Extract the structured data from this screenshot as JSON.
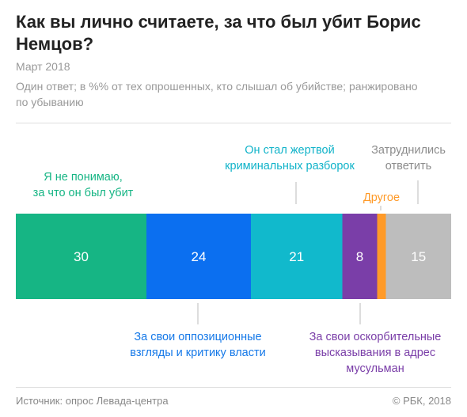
{
  "chart_data": {
    "type": "stacked_bar",
    "title": "Как вы лично считаете, за что был убит Борис Немцов?",
    "subtitle": "Март 2018",
    "note": "Один ответ; в %% от тех опрошенных, кто слышал об убийстве; ранжировано по убыванию",
    "categories": [
      "Я не понимаю,\nза что он был убит",
      "За свои оппозиционные\nвзгляды и критику власти",
      "Он стал жертвой\nкриминальных разборок",
      "За свои оскорбительные\nвысказывания в адрес\nмусульман",
      "Другое",
      "Затруднились\nответить"
    ],
    "values": [
      30,
      24,
      21,
      8,
      2,
      15
    ],
    "colors": [
      "#16b584",
      "#0b6ff0",
      "#11b9cc",
      "#7a3ea8",
      "#ff9a28",
      "#bdbdbd"
    ],
    "label_colors": [
      "#16b584",
      "#1478e8",
      "#10b3c9",
      "#7a3ea8",
      "#ff9a28",
      "#8c8c8c"
    ],
    "xlim": [
      0,
      100
    ],
    "source": "Источник: опрос Левада-центра",
    "copyright": "© РБК, 2018"
  }
}
